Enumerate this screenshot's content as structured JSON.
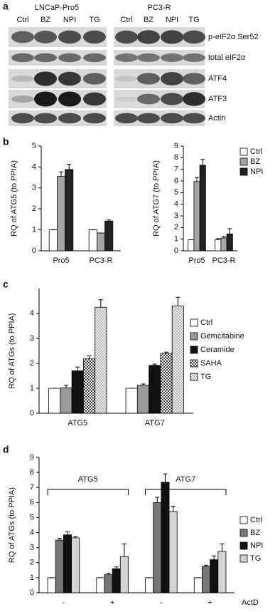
{
  "blot": {
    "label": "a",
    "cell_lines": [
      "LNCaP-Pro5",
      "PC3-R"
    ],
    "lanes": [
      "Ctrl",
      "BZ",
      "NPI",
      "TG"
    ],
    "rows": [
      "p-eIF2α Ser52",
      "total eIF2α",
      "ATF4",
      "ATF3",
      "Actin"
    ]
  },
  "chart_data": [
    {
      "type": "bar",
      "label": "b",
      "ylabel": "RQ of ATG5 (to PPIA)",
      "categories": [
        "Pro5",
        "PC3-R"
      ],
      "ylim": [
        0,
        5
      ],
      "yticks": [
        0,
        1,
        2,
        3,
        4,
        5
      ],
      "series": [
        {
          "name": "Ctrl",
          "color": "#ffffff",
          "values": [
            1,
            1
          ],
          "errors": [
            0,
            0
          ]
        },
        {
          "name": "BZ",
          "color": "#a6a6a6",
          "values": [
            3.55,
            0.85
          ],
          "errors": [
            0.22,
            0
          ]
        },
        {
          "name": "NPI",
          "color": "#222222",
          "values": [
            3.88,
            1.42
          ],
          "errors": [
            0.25,
            0.05
          ]
        }
      ]
    },
    {
      "type": "bar",
      "ylabel": "RQ of ATG7 (to PPIA)",
      "categories": [
        "Pro5",
        "PC3-R"
      ],
      "ylim": [
        0,
        9
      ],
      "yticks": [
        0,
        1,
        2,
        3,
        4,
        5,
        6,
        7,
        8,
        9
      ],
      "legend": "upper right",
      "series": [
        {
          "name": "Ctrl",
          "color": "#ffffff",
          "values": [
            0.95,
            0.95
          ],
          "errors": [
            0,
            0.1
          ]
        },
        {
          "name": "BZ",
          "color": "#a6a6a6",
          "values": [
            5.95,
            1.1
          ],
          "errors": [
            0.35,
            0.12
          ]
        },
        {
          "name": "NPI",
          "color": "#222222",
          "values": [
            7.35,
            1.45
          ],
          "errors": [
            0.5,
            0.45
          ]
        }
      ]
    },
    {
      "type": "bar",
      "label": "c",
      "ylabel": "RQ of ATGs (to PPIA)",
      "categories": [
        "ATG5",
        "ATG7"
      ],
      "ylim": [
        0,
        5
      ],
      "yticks": [
        0,
        1,
        2,
        3,
        4
      ],
      "legend": "right",
      "series": [
        {
          "name": "Ctrl",
          "color": "#ffffff",
          "values": [
            1,
            1
          ],
          "errors": [
            0,
            0
          ]
        },
        {
          "name": "Gemcitabine",
          "color": "#999999",
          "values": [
            1.02,
            1.12
          ],
          "errors": [
            0.1,
            0.05
          ]
        },
        {
          "name": "Ceramide",
          "color": "#111111",
          "values": [
            1.7,
            1.92
          ],
          "errors": [
            0.15,
            0.05
          ]
        },
        {
          "name": "SAHA",
          "color": "#555555",
          "pattern": "checker",
          "values": [
            2.18,
            2.4
          ],
          "errors": [
            0.12,
            0.05
          ]
        },
        {
          "name": "TG",
          "color": "#dddddd",
          "pattern": "dots",
          "values": [
            4.25,
            4.3
          ],
          "errors": [
            0.3,
            0.35
          ]
        }
      ]
    },
    {
      "type": "bar",
      "label": "d",
      "ylabel": "RQ of ATGs (to PPIA)",
      "categories": [
        "-",
        "+",
        "-",
        "+"
      ],
      "groups": [
        "ATG5",
        "ATG7"
      ],
      "xlabel": "ActD",
      "ylim": [
        0,
        9
      ],
      "yticks": [
        0,
        1,
        2,
        3,
        4,
        5,
        6,
        7,
        8,
        9
      ],
      "legend": "right",
      "series": [
        {
          "name": "Ctrl",
          "color": "#ffffff",
          "values": [
            1,
            1,
            1,
            1
          ],
          "errors": [
            0,
            0,
            0,
            0
          ]
        },
        {
          "name": "BZ",
          "color": "#777777",
          "values": [
            3.5,
            1.2,
            6.0,
            1.75
          ],
          "errors": [
            0.12,
            0.1,
            0.35,
            0.08
          ]
        },
        {
          "name": "NPI",
          "color": "#111111",
          "values": [
            3.85,
            1.6,
            7.35,
            2.2
          ],
          "errors": [
            0.2,
            0.12,
            0.55,
            0.25
          ]
        },
        {
          "name": "TG",
          "color": "#d4d4d4",
          "values": [
            3.65,
            2.4,
            5.4,
            2.75
          ],
          "errors": [
            0.08,
            0.85,
            0.35,
            0.5
          ]
        }
      ]
    }
  ]
}
